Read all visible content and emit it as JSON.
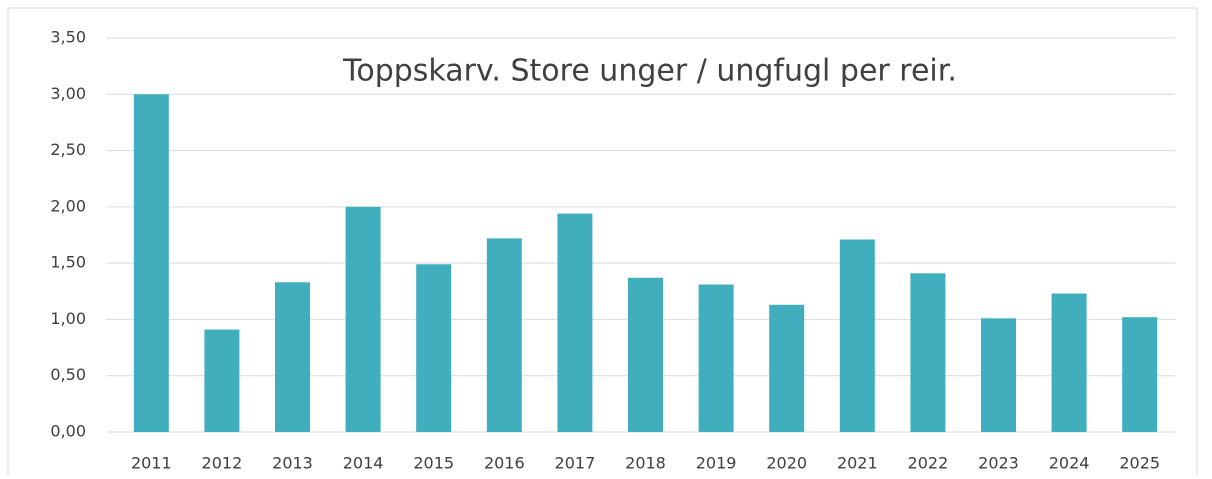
{
  "chart_data": {
    "type": "bar",
    "title": "Toppskarv. Store unger / ungfugl per reir.",
    "categories": [
      "2011",
      "2012",
      "2013",
      "2014",
      "2015",
      "2016",
      "2017",
      "2018",
      "2019",
      "2020",
      "2021",
      "2022",
      "2023",
      "2024",
      "2025"
    ],
    "values": [
      3.0,
      0.91,
      1.33,
      2.0,
      1.49,
      1.72,
      1.94,
      1.37,
      1.31,
      1.13,
      1.71,
      1.41,
      1.01,
      1.23,
      1.02
    ],
    "color": "#41aebe",
    "ylim": [
      0,
      3.5
    ],
    "yticks": [
      {
        "value": 0,
        "label": "0,00"
      },
      {
        "value": 0.5,
        "label": "0,50"
      },
      {
        "value": 1,
        "label": "1,00"
      },
      {
        "value": 1.5,
        "label": "1,50"
      },
      {
        "value": 2,
        "label": "2,00"
      },
      {
        "value": 2.5,
        "label": "2,50"
      },
      {
        "value": 3,
        "label": "3,00"
      },
      {
        "value": 3.5,
        "label": "3,50"
      }
    ],
    "grid": true
  }
}
